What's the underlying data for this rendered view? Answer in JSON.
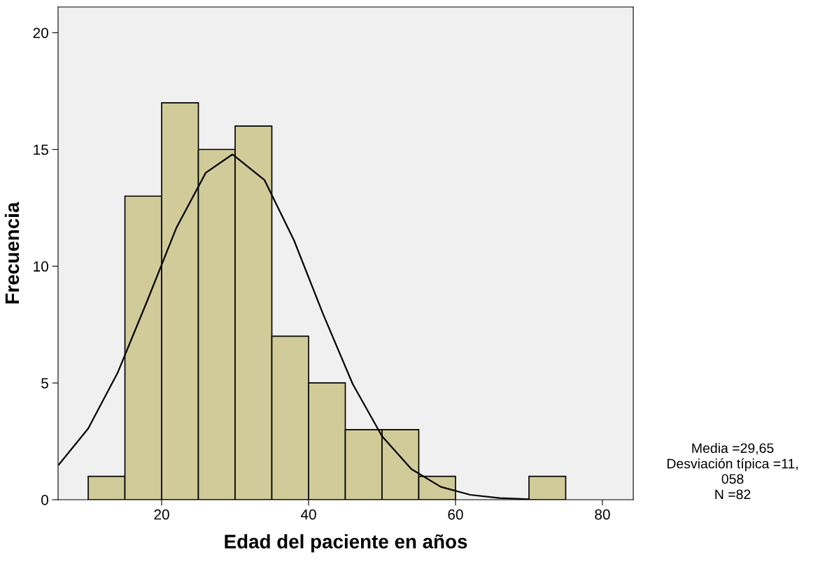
{
  "chart_data": {
    "type": "histogram",
    "xlabel": "Edad del paciente en años",
    "ylabel": "Frecuencia",
    "bins": [
      10,
      15,
      20,
      25,
      30,
      35,
      40,
      45,
      50,
      55,
      60,
      65,
      70,
      75
    ],
    "values": [
      1,
      13,
      17,
      15,
      16,
      7,
      5,
      3,
      3,
      1,
      0,
      0,
      1
    ],
    "color": "#d0cb98",
    "series": [
      {
        "type": "line",
        "color": "#000000",
        "x": [
          6,
          10,
          14,
          18,
          22,
          26,
          29.65,
          34,
          38,
          42,
          46,
          50,
          54,
          58,
          62,
          66,
          70
        ],
        "values": [
          1.5,
          3.05,
          5.43,
          8.49,
          11.64,
          14.0,
          14.79,
          13.69,
          11.12,
          7.93,
          4.96,
          2.72,
          1.31,
          0.55,
          0.21,
          0.07,
          0.02
        ]
      }
    ],
    "xlim": [
      5.9,
      84.2
    ],
    "xticks": [
      20,
      40,
      60,
      80
    ],
    "ylim": [
      0,
      21.1
    ],
    "yticks": [
      0,
      5,
      10,
      15,
      20
    ],
    "grid": false,
    "annotations": [
      "Media =29,65",
      "Desviación típica =11,",
      "058",
      "N =82"
    ]
  }
}
